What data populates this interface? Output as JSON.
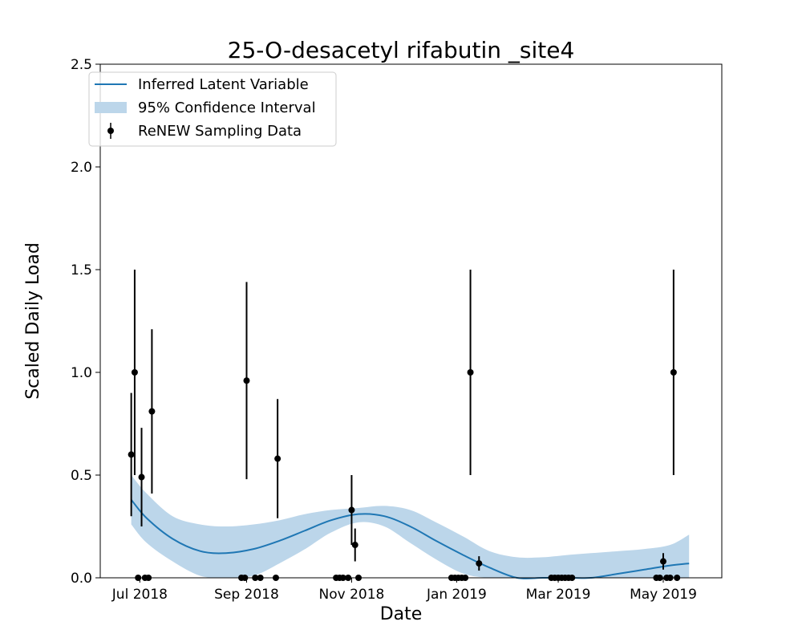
{
  "chart_data": {
    "type": "line",
    "title": "25-O-desacetyl rifabutin _site4",
    "xlabel": "Date",
    "ylabel": "Scaled Daily Load",
    "ylim": [
      0.0,
      2.5
    ],
    "y_ticks": [
      0.0,
      0.5,
      1.0,
      1.5,
      2.0,
      2.5
    ],
    "y_tick_labels": [
      "0.0",
      "0.5",
      "1.0",
      "1.5",
      "2.0",
      "2.5"
    ],
    "xlim": [
      "2018-06-08",
      "2019-06-04"
    ],
    "x_ticks": [
      "2018-07-01",
      "2018-09-01",
      "2018-11-01",
      "2019-01-01",
      "2019-03-01",
      "2019-05-01"
    ],
    "x_tick_labels": [
      "Jul 2018",
      "Sep 2018",
      "Nov 2018",
      "Jan 2019",
      "Mar 2019",
      "May 2019"
    ],
    "legend": {
      "position": "top-left",
      "entries": [
        "Inferred Latent Variable",
        "95% Confidence Interval",
        "ReNEW Sampling Data"
      ]
    },
    "colors": {
      "line": "#1f77b4",
      "band": "#bcd6ea",
      "points": "#000000"
    },
    "latent_line": {
      "x": [
        "2018-06-26",
        "2018-07-05",
        "2018-07-20",
        "2018-08-05",
        "2018-08-20",
        "2018-09-05",
        "2018-09-20",
        "2018-10-05",
        "2018-10-20",
        "2018-11-05",
        "2018-11-20",
        "2018-12-05",
        "2018-12-20",
        "2019-01-05",
        "2019-01-20",
        "2019-02-05",
        "2019-02-20",
        "2019-03-05",
        "2019-03-20",
        "2019-04-05",
        "2019-04-20",
        "2019-05-05",
        "2019-05-16"
      ],
      "y": [
        0.38,
        0.29,
        0.19,
        0.13,
        0.12,
        0.14,
        0.18,
        0.23,
        0.28,
        0.31,
        0.3,
        0.25,
        0.18,
        0.11,
        0.05,
        0.0,
        0.0,
        0.0,
        0.0,
        0.02,
        0.04,
        0.06,
        0.07
      ]
    },
    "confidence_band": {
      "x": [
        "2018-06-26",
        "2018-07-05",
        "2018-07-20",
        "2018-08-05",
        "2018-08-20",
        "2018-09-05",
        "2018-09-20",
        "2018-10-05",
        "2018-10-20",
        "2018-11-05",
        "2018-11-20",
        "2018-12-05",
        "2018-12-20",
        "2019-01-05",
        "2019-01-20",
        "2019-02-05",
        "2019-02-20",
        "2019-03-05",
        "2019-03-20",
        "2019-04-05",
        "2019-04-20",
        "2019-05-05",
        "2019-05-16"
      ],
      "upper": [
        0.5,
        0.41,
        0.3,
        0.26,
        0.25,
        0.26,
        0.28,
        0.31,
        0.33,
        0.34,
        0.35,
        0.33,
        0.27,
        0.2,
        0.13,
        0.1,
        0.1,
        0.11,
        0.12,
        0.13,
        0.14,
        0.16,
        0.21
      ],
      "lower": [
        0.26,
        0.17,
        0.08,
        0.01,
        0.0,
        0.01,
        0.07,
        0.14,
        0.22,
        0.27,
        0.25,
        0.17,
        0.09,
        0.02,
        0.0,
        0.0,
        0.0,
        0.0,
        0.0,
        0.0,
        0.0,
        0.0,
        0.0
      ]
    },
    "sampling_data": [
      {
        "x": "2018-06-26",
        "y": 0.6,
        "err": 0.3
      },
      {
        "x": "2018-06-28",
        "y": 1.0,
        "err": 0.5
      },
      {
        "x": "2018-06-30",
        "y": 0.0
      },
      {
        "x": "2018-07-02",
        "y": 0.49,
        "err": 0.24
      },
      {
        "x": "2018-07-04",
        "y": 0.0
      },
      {
        "x": "2018-07-06",
        "y": 0.0
      },
      {
        "x": "2018-07-08",
        "y": 0.81,
        "err": 0.4
      },
      {
        "x": "2018-08-29",
        "y": 0.0
      },
      {
        "x": "2018-08-31",
        "y": 0.0
      },
      {
        "x": "2018-09-01",
        "y": 0.96,
        "err": 0.48
      },
      {
        "x": "2018-09-06",
        "y": 0.0
      },
      {
        "x": "2018-09-09",
        "y": 0.0
      },
      {
        "x": "2018-09-18",
        "y": 0.0
      },
      {
        "x": "2018-09-19",
        "y": 0.58,
        "err": 0.29
      },
      {
        "x": "2018-10-23",
        "y": 0.0
      },
      {
        "x": "2018-10-25",
        "y": 0.0
      },
      {
        "x": "2018-10-27",
        "y": 0.0
      },
      {
        "x": "2018-10-30",
        "y": 0.0
      },
      {
        "x": "2018-11-01",
        "y": 0.33,
        "err": 0.17
      },
      {
        "x": "2018-11-03",
        "y": 0.16,
        "err": 0.08
      },
      {
        "x": "2018-11-05",
        "y": 0.0
      },
      {
        "x": "2018-12-29",
        "y": 0.0
      },
      {
        "x": "2018-12-31",
        "y": 0.0
      },
      {
        "x": "2019-01-02",
        "y": 0.0
      },
      {
        "x": "2019-01-04",
        "y": 0.0
      },
      {
        "x": "2019-01-06",
        "y": 0.0
      },
      {
        "x": "2019-01-09",
        "y": 1.0,
        "err": 0.5
      },
      {
        "x": "2019-01-14",
        "y": 0.07,
        "err": 0.035
      },
      {
        "x": "2019-02-25",
        "y": 0.0
      },
      {
        "x": "2019-02-27",
        "y": 0.0
      },
      {
        "x": "2019-03-01",
        "y": 0.0
      },
      {
        "x": "2019-03-03",
        "y": 0.0
      },
      {
        "x": "2019-03-05",
        "y": 0.0
      },
      {
        "x": "2019-03-07",
        "y": 0.0
      },
      {
        "x": "2019-03-09",
        "y": 0.0
      },
      {
        "x": "2019-04-27",
        "y": 0.0
      },
      {
        "x": "2019-04-29",
        "y": 0.0
      },
      {
        "x": "2019-05-01",
        "y": 0.08,
        "err": 0.04
      },
      {
        "x": "2019-05-03",
        "y": 0.0
      },
      {
        "x": "2019-05-05",
        "y": 0.0
      },
      {
        "x": "2019-05-07",
        "y": 1.0,
        "err": 0.5
      },
      {
        "x": "2019-05-09",
        "y": 0.0
      }
    ]
  }
}
